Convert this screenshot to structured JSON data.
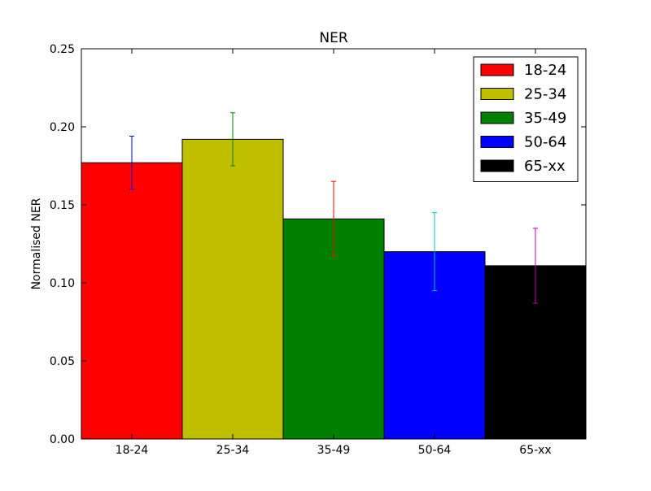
{
  "chart_data": {
    "type": "bar",
    "title": "NER",
    "xlabel": "",
    "ylabel": "Normalised NER",
    "categories": [
      "18-24",
      "25-34",
      "35-49",
      "50-64",
      "65-xx"
    ],
    "values": [
      0.177,
      0.192,
      0.141,
      0.12,
      0.111
    ],
    "errors": [
      0.017,
      0.017,
      0.024,
      0.025,
      0.024
    ],
    "bar_colors": [
      "#ff0000",
      "#bfbf00",
      "#008000",
      "#0000ff",
      "#000000"
    ],
    "error_colors": [
      "#0000ff",
      "#008000",
      "#ff0000",
      "#00bfbf",
      "#bf00bf"
    ],
    "ylim": [
      0,
      0.25
    ],
    "yticks": [
      "0.00",
      "0.05",
      "0.10",
      "0.15",
      "0.20",
      "0.25"
    ],
    "legend": {
      "position": "top-right",
      "entries": [
        "18-24",
        "25-34",
        "35-49",
        "50-64",
        "65-xx"
      ]
    },
    "grid": false
  }
}
